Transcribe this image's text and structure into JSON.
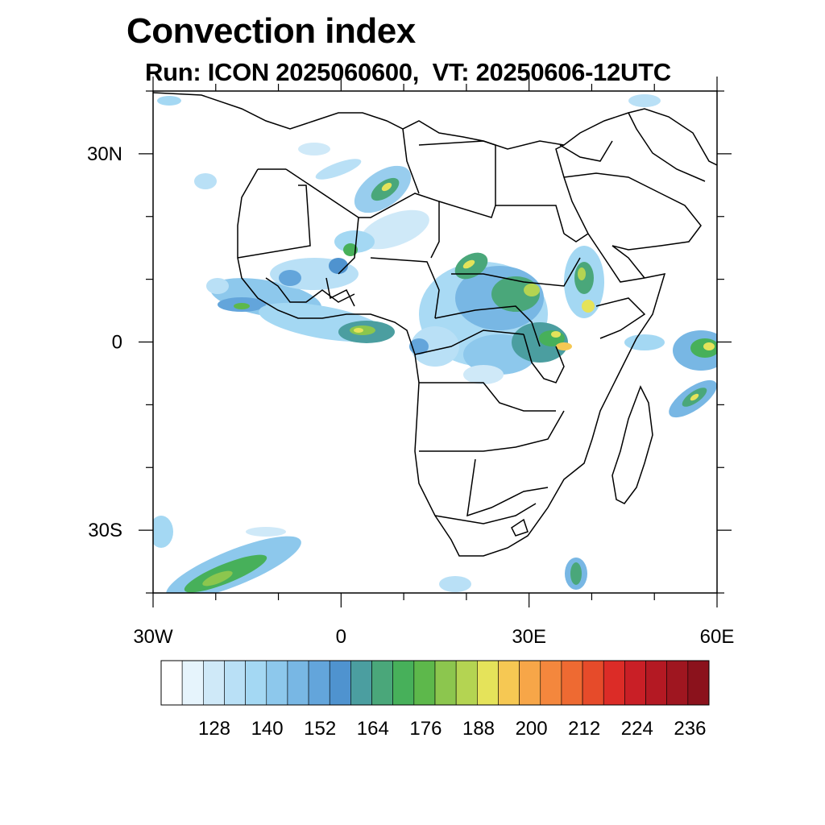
{
  "title": "Convection index",
  "subtitle": "Run: ICON 2025060600,  VT: 20250606-12UTC",
  "map": {
    "lon_range": [
      -30,
      60
    ],
    "lat_range": [
      -40,
      40
    ],
    "lat_labels": [
      {
        "value": 30,
        "label": "30N"
      },
      {
        "value": 0,
        "label": "0"
      },
      {
        "value": -30,
        "label": "30S"
      }
    ],
    "lon_labels": [
      {
        "value": -30,
        "label": "30W"
      },
      {
        "value": 0,
        "label": "0"
      },
      {
        "value": 30,
        "label": "30E"
      },
      {
        "value": 60,
        "label": "60E"
      }
    ]
  },
  "colorbar": {
    "labels": [
      "128",
      "140",
      "152",
      "164",
      "176",
      "188",
      "200",
      "212",
      "224",
      "236"
    ],
    "colors": [
      "#ffffff",
      "#e6f4fc",
      "#cfe9f8",
      "#b9e0f6",
      "#a4d8f3",
      "#8dc8ec",
      "#78b7e4",
      "#63a5db",
      "#4f93cf",
      "#4b9ea0",
      "#4aa77a",
      "#47b05a",
      "#5db84b",
      "#8cc64e",
      "#b4d452",
      "#e5e35a",
      "#f6c853",
      "#f7a648",
      "#f4873d",
      "#ee6a32",
      "#e64b2a",
      "#dc2c27",
      "#c91f26",
      "#b41923",
      "#9f1620",
      "#8b121c"
    ]
  }
}
